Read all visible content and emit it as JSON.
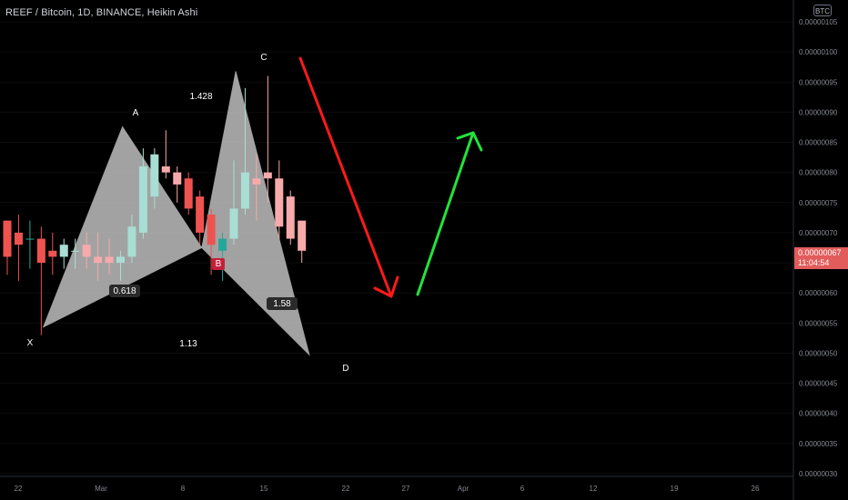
{
  "header": {
    "title": "REEF / Bitcoin, 1D, BINANCE, Heikin Ashi",
    "currency_badge": "BTC"
  },
  "last_price": {
    "value": "0.00000067",
    "countdown": "11:04:54",
    "color": "#e25c5c"
  },
  "colors": {
    "background": "#000000",
    "bull_candle": "#a8ded3",
    "bear_candle": "#f7aaaa",
    "bull_candle_strong": "#26a69a",
    "bear_candle_strong": "#ef5350",
    "pattern_fill": "#e0e0e0",
    "down_arrow": "#ff1a1a",
    "up_arrow": "#22e33a"
  },
  "chart_data": {
    "type": "candlestick",
    "title": "REEF / Bitcoin, 1D, BINANCE, Heikin Ashi",
    "y_axis": {
      "ticks": [
        "0.00000105",
        "0.00000100",
        "0.00000095",
        "0.00000090",
        "0.00000085",
        "0.00000080",
        "0.00000075",
        "0.00000070",
        "0.00000065",
        "0.00000060",
        "0.00000055",
        "0.00000050",
        "0.00000045",
        "0.00000040",
        "0.00000035",
        "0.00000030"
      ],
      "ylim": [
        3e-07,
        1.05e-06
      ]
    },
    "x_axis": {
      "ticks": [
        "22",
        "Mar",
        "8",
        "15",
        "22",
        "27",
        "Apr",
        "6",
        "12",
        "19",
        "26"
      ]
    },
    "candles": [
      {
        "o": 7.2e-07,
        "h": 7.2e-07,
        "l": 6.3e-07,
        "c": 6.6e-07
      },
      {
        "o": 7e-07,
        "h": 7.3e-07,
        "l": 6.2e-07,
        "c": 6.8e-07
      },
      {
        "o": 6.9e-07,
        "h": 7.2e-07,
        "l": 6.4e-07,
        "c": 6.9e-07
      },
      {
        "o": 6.9e-07,
        "h": 7.1e-07,
        "l": 5.3e-07,
        "c": 6.5e-07
      },
      {
        "o": 6.7e-07,
        "h": 7e-07,
        "l": 6.3e-07,
        "c": 6.6e-07
      },
      {
        "o": 6.6e-07,
        "h": 6.9e-07,
        "l": 6.4e-07,
        "c": 6.8e-07
      },
      {
        "o": 6.7e-07,
        "h": 6.9e-07,
        "l": 6.4e-07,
        "c": 6.7e-07
      },
      {
        "o": 6.8e-07,
        "h": 7e-07,
        "l": 6.4e-07,
        "c": 6.6e-07
      },
      {
        "o": 6.6e-07,
        "h": 7e-07,
        "l": 6.2e-07,
        "c": 6.5e-07
      },
      {
        "o": 6.6e-07,
        "h": 6.9e-07,
        "l": 6.3e-07,
        "c": 6.5e-07
      },
      {
        "o": 6.5e-07,
        "h": 6.7e-07,
        "l": 6.2e-07,
        "c": 6.6e-07
      },
      {
        "o": 6.6e-07,
        "h": 7.3e-07,
        "l": 6.5e-07,
        "c": 7.1e-07
      },
      {
        "o": 7e-07,
        "h": 8.4e-07,
        "l": 6.9e-07,
        "c": 8.1e-07
      },
      {
        "o": 7.6e-07,
        "h": 8.4e-07,
        "l": 7.4e-07,
        "c": 8.3e-07
      },
      {
        "o": 8.1e-07,
        "h": 8.7e-07,
        "l": 7.9e-07,
        "c": 8e-07
      },
      {
        "o": 8e-07,
        "h": 8.1e-07,
        "l": 7.5e-07,
        "c": 7.8e-07
      },
      {
        "o": 7.9e-07,
        "h": 8e-07,
        "l": 7.3e-07,
        "c": 7.4e-07
      },
      {
        "o": 7.6e-07,
        "h": 7.7e-07,
        "l": 6.8e-07,
        "c": 7e-07
      },
      {
        "o": 7.3e-07,
        "h": 7.4e-07,
        "l": 6.3e-07,
        "c": 6.8e-07
      },
      {
        "o": 6.7e-07,
        "h": 7e-07,
        "l": 6.2e-07,
        "c": 6.9e-07
      },
      {
        "o": 6.9e-07,
        "h": 8.2e-07,
        "l": 6.8e-07,
        "c": 7.4e-07
      },
      {
        "o": 7.4e-07,
        "h": 9.4e-07,
        "l": 7.3e-07,
        "c": 8e-07
      },
      {
        "o": 7.9e-07,
        "h": 8.3e-07,
        "l": 7.2e-07,
        "c": 7.8e-07
      },
      {
        "o": 8e-07,
        "h": 9.6e-07,
        "l": 7.5e-07,
        "c": 7.9e-07
      },
      {
        "o": 7.9e-07,
        "h": 8.2e-07,
        "l": 6.9e-07,
        "c": 7.1e-07
      },
      {
        "o": 7.6e-07,
        "h": 7.7e-07,
        "l": 6.8e-07,
        "c": 6.9e-07
      },
      {
        "o": 7.2e-07,
        "h": 7.2e-07,
        "l": 6.5e-07,
        "c": 6.7e-07
      }
    ],
    "harmonic_pattern": {
      "points": [
        {
          "label": "X",
          "index": 1.0,
          "price": 5.43e-07
        },
        {
          "label": "A",
          "index": 8.0,
          "price": 8.76e-07
        },
        {
          "label": "B",
          "index": 15.0,
          "price": 6.75e-07
        },
        {
          "label": "C",
          "index": 18.0,
          "price": 9.68e-07
        },
        {
          "label": "D",
          "index": 24.5,
          "price": 4.97e-07
        }
      ],
      "ratios": [
        "1.428",
        "0.618",
        "1.13",
        "1.58"
      ]
    },
    "arrows": [
      {
        "direction": "down",
        "color": "#ff1a1a"
      },
      {
        "direction": "up",
        "color": "#22e33a"
      }
    ]
  }
}
